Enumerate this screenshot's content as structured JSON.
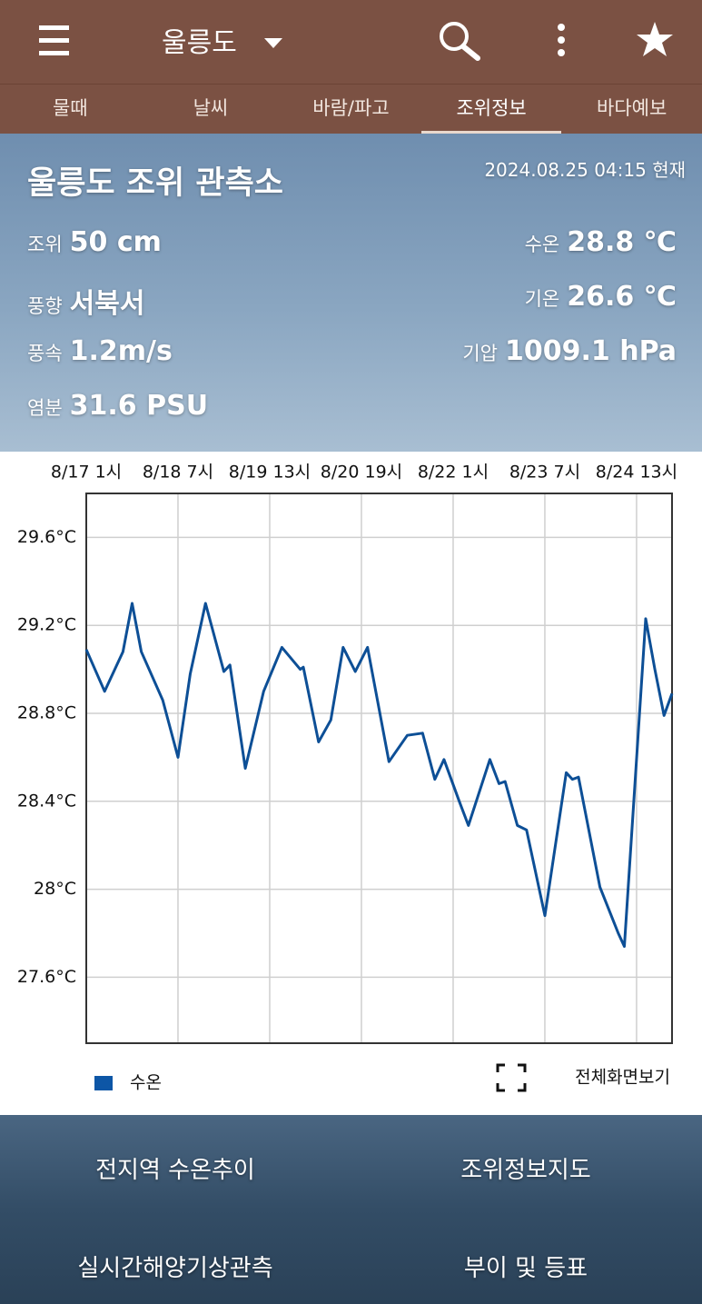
{
  "header": {
    "title": "울릉도"
  },
  "tabs": [
    "물때",
    "날씨",
    "바람/파고",
    "조위정보",
    "바다예보"
  ],
  "station": {
    "name": "울릉도 조위 관측소",
    "timestamp": "2024.08.25 04:15 현재",
    "left": [
      {
        "label": "조위",
        "value": "50 cm"
      },
      {
        "label": "풍향",
        "value": "서북서"
      },
      {
        "label": "풍속",
        "value": "1.2m/s"
      },
      {
        "label": "염분",
        "value": "31.6 PSU"
      }
    ],
    "right": [
      {
        "label": "수온",
        "value": "28.8 ℃"
      },
      {
        "label": "기온",
        "value": "26.6 ℃"
      },
      {
        "label": "기압",
        "value": "1009.1 hPa"
      }
    ]
  },
  "chart_data": {
    "type": "line",
    "x": [
      0,
      6,
      12,
      15,
      18,
      25,
      30,
      34,
      39,
      45,
      47,
      52,
      58,
      64,
      70,
      71,
      76,
      80,
      84,
      88,
      92,
      99,
      105,
      110,
      114,
      117,
      122,
      125,
      132,
      135,
      137,
      141,
      144,
      150,
      157,
      159,
      161,
      168,
      174,
      176,
      183,
      186,
      189,
      191.6
    ],
    "series": [
      {
        "name": "수온",
        "color": "#0d4f96",
        "values": [
          29.09,
          28.9,
          29.08,
          29.3,
          29.08,
          28.86,
          28.6,
          28.98,
          29.3,
          28.99,
          29.02,
          28.55,
          28.9,
          29.1,
          29.0,
          29.01,
          28.67,
          28.77,
          29.1,
          28.99,
          29.1,
          28.58,
          28.7,
          28.71,
          28.5,
          28.59,
          28.4,
          28.29,
          28.59,
          28.48,
          28.49,
          28.29,
          28.27,
          27.88,
          28.53,
          28.5,
          28.51,
          28.01,
          27.8,
          27.74,
          29.23,
          29.0,
          28.79,
          28.89
        ]
      }
    ],
    "xlim": [
      0,
      191.6
    ],
    "xticks": [
      {
        "value": 0,
        "label": "8/17 1시"
      },
      {
        "value": 30,
        "label": "8/18 7시"
      },
      {
        "value": 60,
        "label": "8/19 13시"
      },
      {
        "value": 90,
        "label": "8/20 19시"
      },
      {
        "value": 120,
        "label": "8/22 1시"
      },
      {
        "value": 150,
        "label": "8/23 7시"
      },
      {
        "value": 180,
        "label": "8/24 13시"
      }
    ],
    "ylim": [
      27.3,
      29.8
    ],
    "yticks": [
      {
        "value": 27.6,
        "label": "27.6°C"
      },
      {
        "value": 28,
        "label": "28°C"
      },
      {
        "value": 28.4,
        "label": "28.4°C"
      },
      {
        "value": 28.8,
        "label": "28.8°C"
      },
      {
        "value": 29.2,
        "label": "29.2°C"
      },
      {
        "value": 29.6,
        "label": "29.6°C"
      }
    ],
    "grid": true
  },
  "fullscreen_button": "전체화면보기",
  "links": [
    "전지역 수온추이",
    "조위정보지도",
    "실시간해양기상관측",
    "부이 및 등표"
  ]
}
